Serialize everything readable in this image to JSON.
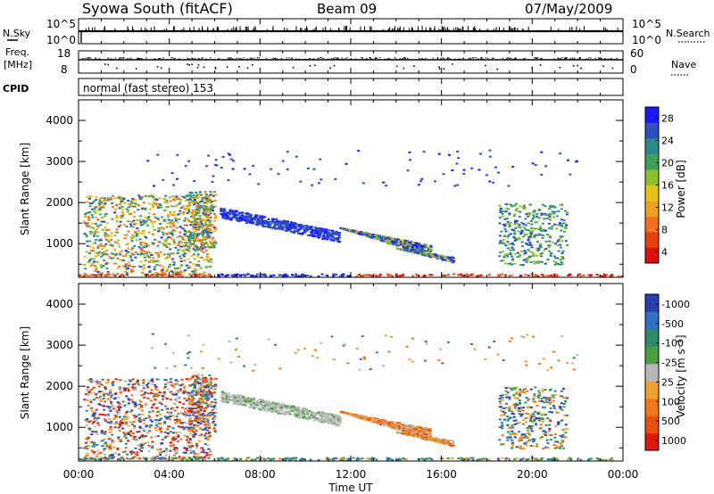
{
  "header": {
    "station": "Syowa South (fitACF)",
    "beam": "Beam 09",
    "date": "07/May/2009"
  },
  "top_panels": {
    "nsky_label": "N.Sky",
    "nsky_ticks": [
      "10^5",
      "10^0"
    ],
    "nsearch_label": "N.Search",
    "nsearch_ticks": [
      "10^5",
      "10^0"
    ],
    "freq_label_1": "Freq.",
    "freq_label_2": "[MHz]",
    "freq_ticks": [
      "18",
      "8"
    ],
    "nave_label": "Nave",
    "nave_ticks": [
      "60",
      "0"
    ],
    "cpid_label": "CPID",
    "cpid_value": "normal (fast stereo) 153"
  },
  "chart_data": [
    {
      "type": "heatmap",
      "name": "power",
      "ylabel": "Slant Range [km]",
      "ylim": [
        180,
        4500
      ],
      "y_ticks": [
        "1000",
        "2000",
        "3000",
        "4000"
      ],
      "xlim": [
        0,
        24
      ],
      "colorbar_label": "Power [dB]",
      "colorbar_ticks": [
        "4",
        "8",
        "12",
        "16",
        "20",
        "24",
        "28"
      ],
      "colorbar_colors": [
        "#1a1aff",
        "#2e4fbf",
        "#2d8a8a",
        "#3fa05a",
        "#8cbf2a",
        "#e6c21a",
        "#f0a020",
        "#f07020",
        "#e64010",
        "#dd1010"
      ]
    },
    {
      "type": "heatmap",
      "name": "velocity",
      "ylabel": "Slant Range [km]",
      "ylim": [
        180,
        4500
      ],
      "y_ticks": [
        "1000",
        "2000",
        "3000",
        "4000"
      ],
      "xlim": [
        0,
        24
      ],
      "colorbar_label": "Velocity  [m s⁻¹]",
      "colorbar_ticks": [
        "1000",
        "500",
        "100",
        "25",
        "-25",
        "-100",
        "-500",
        "-1000"
      ],
      "colorbar_colors": [
        "#2a40b0",
        "#3070c0",
        "#2e8a6a",
        "#4aa040",
        "#b8b8b8",
        "#f0a030",
        "#f07818",
        "#e65010",
        "#dd1a10"
      ]
    }
  ],
  "x_axis": {
    "tick_labels": [
      "00:00",
      "04:00",
      "08:00",
      "12:00",
      "16:00",
      "20:00",
      "00:00"
    ],
    "xlabel": "Time UT"
  }
}
